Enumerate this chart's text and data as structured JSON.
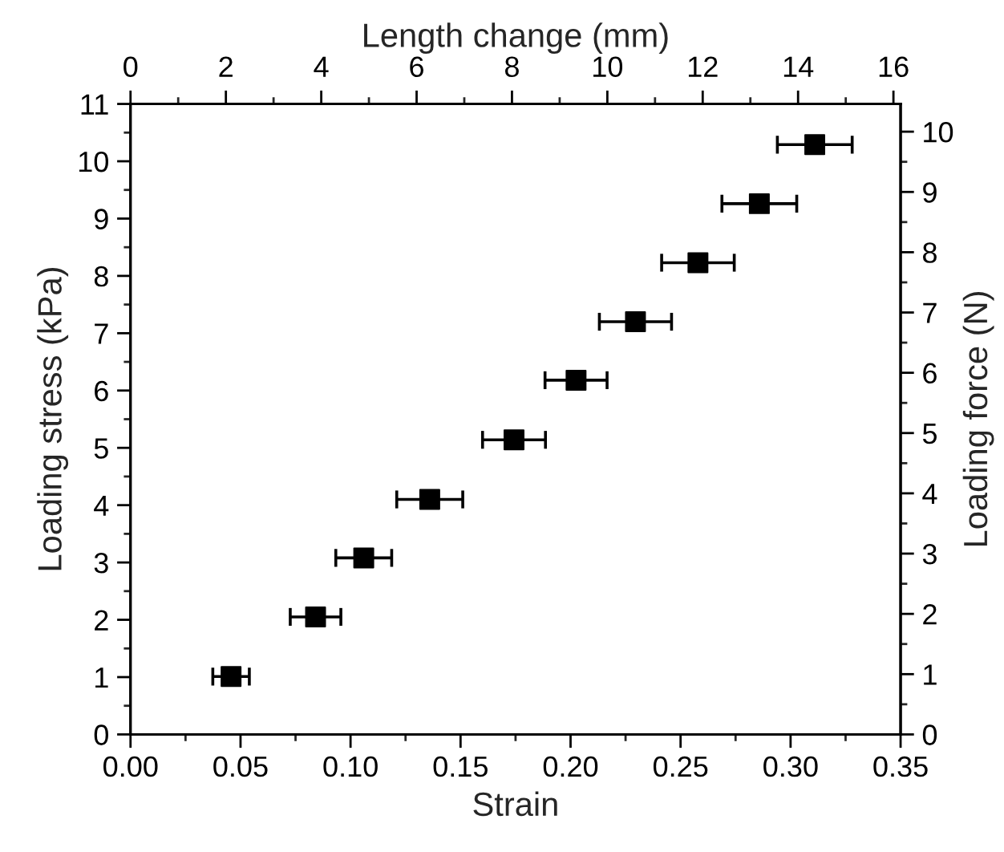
{
  "chart_data": {
    "type": "scatter",
    "xlabel": "Strain",
    "ylabel": "Loading stress (kPa)",
    "y2label": "Loading force (N)",
    "x2label": "Length change (mm)",
    "x": [
      0.0457,
      0.0841,
      0.106,
      0.136,
      0.1743,
      0.2025,
      0.2295,
      0.2579,
      0.2858,
      0.311
    ],
    "series": [
      {
        "color": "#000000",
        "values": [
          1.01,
          2.05,
          3.08,
          4.1,
          5.14,
          6.18,
          7.2,
          8.23,
          9.26,
          10.29
        ],
        "xerrors": [
          0.0083,
          0.0115,
          0.0127,
          0.015,
          0.0143,
          0.0141,
          0.0164,
          0.0165,
          0.017,
          0.017
        ]
      }
    ],
    "marker": "square",
    "grid": false,
    "legend": false,
    "xlim": [
      0,
      0.35
    ],
    "xticks": [
      {
        "value": 0,
        "label": "0.00"
      },
      {
        "value": 0.025,
        "label": null
      },
      {
        "value": 0.05,
        "label": "0.05"
      },
      {
        "value": 0.075,
        "label": null
      },
      {
        "value": 0.1,
        "label": "0.10"
      },
      {
        "value": 0.125,
        "label": null
      },
      {
        "value": 0.15,
        "label": "0.15"
      },
      {
        "value": 0.175,
        "label": null
      },
      {
        "value": 0.2,
        "label": "0.20"
      },
      {
        "value": 0.225,
        "label": null
      },
      {
        "value": 0.25,
        "label": "0.25"
      },
      {
        "value": 0.275,
        "label": null
      },
      {
        "value": 0.3,
        "label": "0.30"
      },
      {
        "value": 0.325,
        "label": null
      },
      {
        "value": 0.35,
        "label": "0.35"
      }
    ],
    "ylim": [
      0,
      11
    ],
    "yticks": [
      0,
      {
        "value": 0.5,
        "label": null
      },
      1,
      {
        "value": 1.5,
        "label": null
      },
      2,
      {
        "value": 2.5,
        "label": null
      },
      3,
      {
        "value": 3.5,
        "label": null
      },
      4,
      {
        "value": 4.5,
        "label": null
      },
      5,
      {
        "value": 5.5,
        "label": null
      },
      6,
      {
        "value": 6.5,
        "label": null
      },
      7,
      {
        "value": 7.5,
        "label": null
      },
      8,
      {
        "value": 8.5,
        "label": null
      },
      9,
      {
        "value": 9.5,
        "label": null
      },
      10,
      {
        "value": 10.5,
        "label": null
      },
      11
    ],
    "y2lim": [
      0,
      10.46
    ],
    "y2ticks": [
      0,
      {
        "value": 0.5,
        "label": null
      },
      1,
      {
        "value": 1.5,
        "label": null
      },
      2,
      {
        "value": 2.5,
        "label": null
      },
      3,
      {
        "value": 3.5,
        "label": null
      },
      4,
      {
        "value": 4.5,
        "label": null
      },
      5,
      {
        "value": 5.5,
        "label": null
      },
      6,
      {
        "value": 6.5,
        "label": null
      },
      7,
      {
        "value": 7.5,
        "label": null
      },
      8,
      {
        "value": 8.5,
        "label": null
      },
      9,
      {
        "value": 9.5,
        "label": null
      },
      10
    ],
    "x2lim": [
      0,
      16.15
    ],
    "x2ticks": [
      0,
      {
        "value": 1,
        "label": null
      },
      2,
      {
        "value": 3,
        "label": null
      },
      4,
      {
        "value": 5,
        "label": null
      },
      6,
      {
        "value": 7,
        "label": null
      },
      8,
      {
        "value": 9,
        "label": null
      },
      10,
      {
        "value": 11,
        "label": null
      },
      12,
      {
        "value": 13,
        "label": null
      },
      14,
      {
        "value": 15,
        "label": null
      },
      16
    ]
  }
}
